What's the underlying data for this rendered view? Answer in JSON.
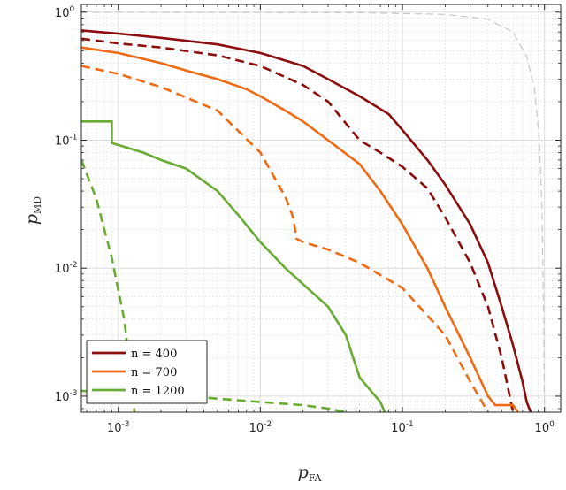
{
  "chart_data": {
    "type": "line",
    "title": "",
    "xlabel": "p",
    "xlabel_sub": "FA",
    "ylabel": "p",
    "ylabel_sub": "MD",
    "xscale": "log",
    "yscale": "log",
    "xlim": [
      0.00055,
      1.3
    ],
    "ylim": [
      0.00075,
      1.15
    ],
    "grid": true,
    "legend_position": "bottom-left",
    "x_ticks": [
      {
        "base": "10",
        "exp": "-3",
        "value": 0.001
      },
      {
        "base": "10",
        "exp": "-2",
        "value": 0.01
      },
      {
        "base": "10",
        "exp": "-1",
        "value": 0.1
      },
      {
        "base": "10",
        "exp": "0",
        "value": 1
      }
    ],
    "y_ticks": [
      {
        "base": "10",
        "exp": "-3",
        "value": 0.001
      },
      {
        "base": "10",
        "exp": "-2",
        "value": 0.01
      },
      {
        "base": "10",
        "exp": "-1",
        "value": 0.1
      },
      {
        "base": "10",
        "exp": "0",
        "value": 1
      }
    ],
    "reference_curve": {
      "style": "dashed",
      "color": "#c8c8c8",
      "x": [
        0.00055,
        0.05,
        0.2,
        0.4,
        0.6,
        0.75,
        0.85,
        0.92,
        0.96,
        0.985,
        1.0
      ],
      "y": [
        1.0,
        0.99,
        0.96,
        0.88,
        0.7,
        0.45,
        0.25,
        0.1,
        0.03,
        0.005,
        0.00075
      ]
    },
    "series": [
      {
        "name": "n = 400",
        "color": "#8b0d0d",
        "legend": true,
        "solid": {
          "x": [
            0.00055,
            0.001,
            0.002,
            0.005,
            0.01,
            0.02,
            0.03,
            0.05,
            0.08,
            0.1,
            0.15,
            0.2,
            0.3,
            0.4,
            0.5,
            0.6,
            0.7,
            0.75,
            0.8
          ],
          "y": [
            0.72,
            0.68,
            0.63,
            0.56,
            0.48,
            0.38,
            0.3,
            0.22,
            0.16,
            0.12,
            0.07,
            0.045,
            0.022,
            0.011,
            0.005,
            0.0025,
            0.0013,
            0.0009,
            0.00075
          ]
        },
        "dashed": {
          "x": [
            0.00055,
            0.001,
            0.002,
            0.005,
            0.01,
            0.02,
            0.03,
            0.05,
            0.07,
            0.1,
            0.15,
            0.2,
            0.3,
            0.4,
            0.5,
            0.6
          ],
          "y": [
            0.62,
            0.57,
            0.53,
            0.46,
            0.38,
            0.27,
            0.2,
            0.1,
            0.08,
            0.062,
            0.042,
            0.025,
            0.011,
            0.005,
            0.002,
            0.00075
          ]
        }
      },
      {
        "name": "n = 700",
        "color": "#f06a14",
        "legend": true,
        "solid": {
          "x": [
            0.00055,
            0.001,
            0.002,
            0.003,
            0.005,
            0.008,
            0.01,
            0.015,
            0.02,
            0.03,
            0.05,
            0.07,
            0.1,
            0.15,
            0.2,
            0.3,
            0.4,
            0.45,
            0.6,
            0.65
          ],
          "y": [
            0.53,
            0.48,
            0.4,
            0.35,
            0.3,
            0.25,
            0.22,
            0.17,
            0.14,
            0.1,
            0.065,
            0.04,
            0.022,
            0.01,
            0.005,
            0.002,
            0.001,
            0.00085,
            0.00085,
            0.00075
          ]
        },
        "dashed": {
          "x": [
            0.00055,
            0.001,
            0.002,
            0.005,
            0.01,
            0.015,
            0.017,
            0.018,
            0.02,
            0.03,
            0.05,
            0.1,
            0.2,
            0.3,
            0.4
          ],
          "y": [
            0.38,
            0.33,
            0.26,
            0.17,
            0.08,
            0.036,
            0.025,
            0.017,
            0.016,
            0.014,
            0.011,
            0.007,
            0.003,
            0.0013,
            0.00075
          ]
        }
      },
      {
        "name": "n = 1200",
        "color": "#6aab32",
        "legend": true,
        "solid": {
          "x": [
            0.00055,
            0.0009,
            0.0009,
            0.0015,
            0.002,
            0.003,
            0.005,
            0.007,
            0.01,
            0.015,
            0.02,
            0.025,
            0.03,
            0.04,
            0.045,
            0.05,
            0.06,
            0.07,
            0.075
          ],
          "y": [
            0.14,
            0.14,
            0.095,
            0.08,
            0.07,
            0.06,
            0.04,
            0.026,
            0.016,
            0.01,
            0.0075,
            0.006,
            0.005,
            0.003,
            0.002,
            0.0014,
            0.0011,
            0.0009,
            0.00075
          ]
        },
        "dashed": {
          "x": [
            0.00055,
            0.0007,
            0.0009,
            0.0011,
            0.0012,
            0.0013
          ],
          "y": [
            0.07,
            0.035,
            0.012,
            0.004,
            0.0018,
            0.00075
          ]
        },
        "dashed_tail": {
          "x": [
            0.00055,
            0.003,
            0.01,
            0.02,
            0.03,
            0.04
          ],
          "y": [
            0.0011,
            0.001,
            0.0009,
            0.00085,
            0.0008,
            0.00075
          ]
        }
      }
    ]
  }
}
